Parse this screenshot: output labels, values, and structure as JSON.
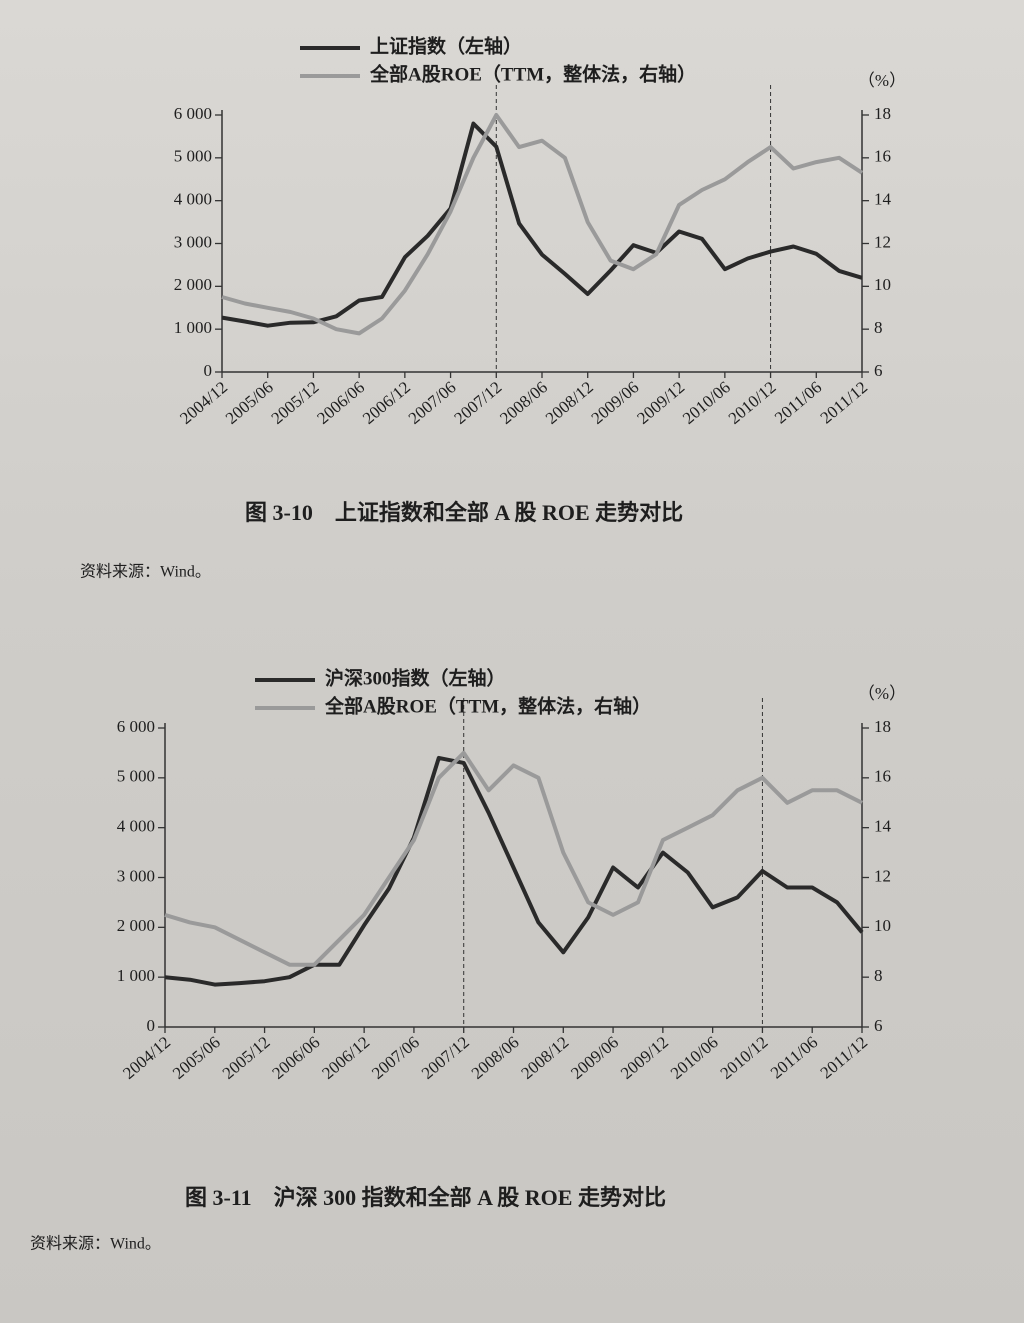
{
  "chart_data": [
    {
      "type": "line",
      "categories": [
        "2004/12",
        null,
        "2005/06",
        null,
        "2005/12",
        null,
        "2006/06",
        null,
        "2006/12",
        null,
        "2007/06",
        null,
        "2007/12",
        null,
        "2008/06",
        null,
        "2008/12",
        null,
        "2009/06",
        null,
        "2009/12",
        null,
        "2010/06",
        null,
        "2010/12",
        null,
        "2011/06",
        null,
        "2011/12"
      ],
      "series": [
        {
          "name": "上证指数（左轴）",
          "color": "#2a2a2a",
          "values": [
            1270,
            1180,
            1080,
            1150,
            1160,
            1300,
            1670,
            1750,
            2680,
            3180,
            3820,
            5800,
            5260,
            3470,
            2740,
            2290,
            1820,
            2370,
            2960,
            2780,
            3280,
            3110,
            2400,
            2650,
            2810,
            2930,
            2760,
            2360,
            2200
          ]
        },
        {
          "name": "全部A股ROE（TTM，整体法，右轴）",
          "color": "#9a9a9a",
          "axis": "y2",
          "values": [
            9.5,
            9.2,
            9.0,
            8.8,
            8.5,
            8.0,
            7.8,
            8.5,
            9.8,
            11.5,
            13.5,
            16.0,
            18.0,
            16.5,
            16.8,
            16.0,
            13.0,
            11.2,
            10.8,
            11.5,
            13.8,
            14.5,
            15.0,
            15.8,
            16.5,
            15.5,
            15.8,
            16.0,
            15.3
          ]
        }
      ],
      "ylim": [
        0,
        6000
      ],
      "yticks": [
        0,
        {
          "value": 1000,
          "label": "1 000"
        },
        {
          "value": 2000,
          "label": "2 000"
        },
        {
          "value": 3000,
          "label": "3 000"
        },
        {
          "value": 4000,
          "label": "4 000"
        },
        {
          "value": 5000,
          "label": "5 000"
        },
        {
          "value": 6000,
          "label": "6 000"
        }
      ],
      "y2lim": [
        6,
        18
      ],
      "y2ticks": [
        6,
        8,
        10,
        12,
        14,
        16,
        18
      ],
      "y2label": "（%）",
      "reference_x": [
        "2007/12",
        "2010/12"
      ],
      "caption": "图 3-10　上证指数和全部 A 股 ROE 走势对比",
      "source": "资料来源：Wind。"
    },
    {
      "type": "line",
      "categories": [
        "2004/12",
        null,
        "2005/06",
        null,
        "2005/12",
        null,
        "2006/06",
        null,
        "2006/12",
        null,
        "2007/06",
        null,
        "2007/12",
        null,
        "2008/06",
        null,
        "2008/12",
        null,
        "2009/06",
        null,
        "2009/12",
        null,
        "2010/06",
        null,
        "2010/12",
        null,
        "2011/06",
        null,
        "2011/12"
      ],
      "series": [
        {
          "name": "沪深300指数（左轴）",
          "color": "#2a2a2a",
          "values": [
            1000,
            950,
            850,
            880,
            920,
            1000,
            1250,
            1250,
            2040,
            2780,
            3800,
            5400,
            5300,
            4300,
            3200,
            2100,
            1500,
            2200,
            3200,
            2800,
            3500,
            3100,
            2400,
            2600,
            3130,
            2800,
            2800,
            2500,
            1900
          ]
        },
        {
          "name": "全部A股ROE（TTM，整体法，右轴）",
          "color": "#9a9a9a",
          "axis": "y2",
          "values": [
            10.5,
            10.2,
            10.0,
            9.5,
            9.0,
            8.5,
            8.5,
            9.5,
            10.5,
            12.0,
            13.5,
            16.0,
            17.0,
            15.5,
            16.5,
            16.0,
            13.0,
            11.0,
            10.5,
            11.0,
            13.5,
            14.0,
            14.5,
            15.5,
            16.0,
            15.0,
            15.5,
            15.5,
            15.0
          ]
        }
      ],
      "ylim": [
        0,
        6000
      ],
      "yticks": [
        0,
        {
          "value": 1000,
          "label": "1 000"
        },
        {
          "value": 2000,
          "label": "2 000"
        },
        {
          "value": 3000,
          "label": "3 000"
        },
        {
          "value": 4000,
          "label": "4 000"
        },
        {
          "value": 5000,
          "label": "5 000"
        },
        {
          "value": 6000,
          "label": "6 000"
        }
      ],
      "y2lim": [
        6,
        18
      ],
      "y2ticks": [
        6,
        8,
        10,
        12,
        14,
        16,
        18
      ],
      "y2label": "（%）",
      "reference_x": [
        "2007/12",
        "2010/12"
      ],
      "caption": "图 3-11　沪深 300 指数和全部 A 股 ROE 走势对比",
      "source": "资料来源：Wind。"
    }
  ]
}
